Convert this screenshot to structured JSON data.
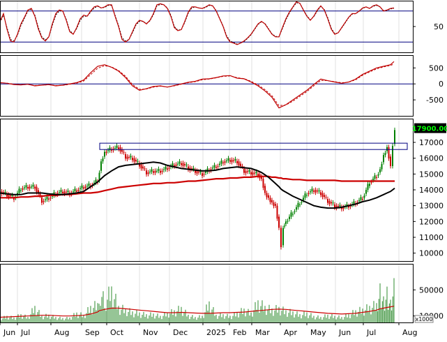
{
  "chart_data": [
    {
      "type": "line",
      "name": "stochastic-panel",
      "ylim": [
        0,
        100
      ],
      "reference_lines": [
        80,
        20
      ],
      "yticks": [
        {
          "v": 50,
          "label": "50"
        }
      ],
      "x": [
        0,
        5,
        10,
        15,
        20,
        25,
        30,
        35,
        40,
        45,
        50,
        55,
        60,
        65,
        70,
        75,
        80,
        85,
        90,
        95,
        100,
        105,
        110,
        115,
        120,
        125,
        130,
        135,
        140,
        145,
        150,
        155,
        160,
        165,
        170,
        175,
        180,
        185,
        190,
        195,
        200,
        205,
        210,
        215,
        220,
        225,
        230,
        235,
        240,
        245,
        250,
        255,
        260,
        265,
        270,
        275,
        280,
        285,
        290,
        295,
        300,
        305,
        310,
        315,
        320,
        325,
        330,
        335,
        340,
        345,
        350,
        355,
        360,
        365,
        370,
        375,
        380,
        385,
        390,
        395,
        400,
        405,
        410,
        415,
        420,
        425,
        430,
        435,
        440,
        445,
        450,
        455,
        460,
        465,
        470,
        475,
        480,
        485,
        490,
        495,
        500,
        505,
        510,
        515,
        520,
        525,
        530,
        535,
        540,
        545,
        550,
        555,
        560,
        565
      ],
      "series": [
        {
          "values": [
            60,
            75,
            45,
            22,
            20,
            35,
            55,
            68,
            82,
            85,
            70,
            45,
            28,
            22,
            30,
            55,
            75,
            82,
            80,
            62,
            40,
            35,
            48,
            65,
            72,
            70,
            80,
            88,
            90,
            86,
            88,
            92,
            92,
            70,
            50,
            25,
            20,
            25,
            40,
            55,
            62,
            60,
            55,
            62,
            75,
            92,
            94,
            92,
            85,
            70,
            48,
            42,
            44,
            60,
            78,
            88,
            88,
            86,
            85,
            88,
            92,
            90,
            80,
            65,
            50,
            30,
            20,
            18,
            15,
            18,
            22,
            28,
            35,
            45,
            55,
            60,
            55,
            45,
            35,
            30,
            30,
            48,
            65,
            78,
            88,
            98,
            95,
            82,
            70,
            62,
            70,
            82,
            90,
            82,
            65,
            45,
            35,
            38,
            48,
            58,
            68,
            75,
            75,
            80,
            86,
            88,
            85,
            90,
            92,
            88,
            80,
            82,
            85,
            86
          ]
        },
        {
          "values": [
            58,
            72,
            48,
            25,
            22,
            33,
            52,
            66,
            80,
            84,
            72,
            48,
            30,
            24,
            30,
            52,
            72,
            80,
            80,
            64,
            42,
            36,
            46,
            62,
            70,
            70,
            78,
            86,
            89,
            86,
            87,
            91,
            91,
            72,
            52,
            28,
            22,
            25,
            38,
            53,
            60,
            60,
            56,
            61,
            73,
            90,
            93,
            92,
            86,
            72,
            50,
            43,
            44,
            58,
            76,
            86,
            88,
            86,
            85,
            87,
            91,
            90,
            81,
            66,
            51,
            32,
            22,
            19,
            16,
            18,
            21,
            27,
            34,
            44,
            54,
            59,
            56,
            46,
            36,
            31,
            30,
            46,
            63,
            76,
            87,
            96,
            95,
            83,
            71,
            63,
            69,
            80,
            89,
            83,
            67,
            47,
            36,
            38,
            47,
            57,
            67,
            74,
            75,
            79,
            85,
            88,
            85,
            89,
            91,
            88,
            81,
            81,
            84,
            85
          ]
        }
      ]
    },
    {
      "type": "line",
      "name": "macd-panel",
      "ylim": [
        -1000,
        900
      ],
      "reference_lines": [
        0
      ],
      "yticks": [
        {
          "v": 500,
          "label": "500"
        },
        {
          "v": 0,
          "label": "0"
        },
        {
          "v": -500,
          "label": "-500"
        }
      ],
      "x": [
        0,
        10,
        20,
        30,
        40,
        50,
        60,
        70,
        80,
        90,
        100,
        110,
        120,
        130,
        140,
        150,
        160,
        170,
        180,
        190,
        200,
        210,
        220,
        230,
        240,
        250,
        260,
        270,
        280,
        290,
        300,
        310,
        320,
        330,
        340,
        350,
        360,
        370,
        380,
        390,
        400,
        410,
        420,
        430,
        440,
        450,
        460,
        470,
        480,
        490,
        500,
        510,
        520,
        530,
        540,
        550,
        560,
        565
      ],
      "series": [
        {
          "values": [
            40,
            20,
            -20,
            -30,
            -10,
            -60,
            -40,
            -20,
            -60,
            -40,
            0,
            40,
            120,
            350,
            550,
            600,
            520,
            400,
            200,
            -60,
            -200,
            -150,
            -80,
            -60,
            -100,
            -50,
            0,
            50,
            80,
            150,
            160,
            200,
            250,
            260,
            180,
            160,
            60,
            -60,
            -220,
            -420,
            -750,
            -650,
            -500,
            -350,
            -200,
            -20,
            150,
            100,
            60,
            20,
            60,
            150,
            300,
            400,
            500,
            550,
            600,
            700
          ]
        },
        {
          "values": [
            35,
            25,
            -10,
            -25,
            -15,
            -50,
            -40,
            -25,
            -50,
            -45,
            -10,
            25,
            90,
            290,
            490,
            570,
            530,
            420,
            240,
            -20,
            -170,
            -160,
            -100,
            -70,
            -95,
            -60,
            -10,
            40,
            70,
            130,
            150,
            190,
            235,
            250,
            195,
            165,
            80,
            -30,
            -180,
            -370,
            -680,
            -660,
            -540,
            -390,
            -240,
            -60,
            110,
            100,
            70,
            35,
            55,
            130,
            270,
            375,
            470,
            530,
            580,
            620
          ]
        }
      ]
    },
    {
      "type": "line",
      "name": "price-panel",
      "ylim": [
        9500,
        18500
      ],
      "current_price_label": "17900.00",
      "yticks": [
        {
          "v": 17000,
          "label": "17000"
        },
        {
          "v": 16000,
          "label": "16000"
        },
        {
          "v": 15000,
          "label": "15000"
        },
        {
          "v": 14000,
          "label": "14000"
        },
        {
          "v": 13000,
          "label": "13000"
        },
        {
          "v": 12000,
          "label": "12000"
        },
        {
          "v": 11000,
          "label": "11000"
        },
        {
          "v": 10000,
          "label": "10000"
        }
      ],
      "resistance_box": {
        "x0": 143,
        "x1": 584,
        "y_low": 16550,
        "y_high": 16950
      },
      "x": [
        0,
        10,
        20,
        30,
        40,
        50,
        60,
        70,
        80,
        90,
        100,
        110,
        120,
        130,
        140,
        145,
        150,
        160,
        170,
        180,
        190,
        200,
        210,
        220,
        230,
        240,
        250,
        260,
        270,
        280,
        290,
        300,
        310,
        320,
        330,
        340,
        350,
        360,
        370,
        375,
        380,
        385,
        390,
        395,
        400,
        403,
        406,
        410,
        420,
        430,
        440,
        450,
        460,
        470,
        480,
        490,
        500,
        510,
        520,
        530,
        540,
        545,
        550,
        555,
        560,
        563,
        566
      ],
      "series": [
        {
          "values": [
            13900,
            13700,
            13500,
            14100,
            14200,
            14200,
            13300,
            13500,
            13800,
            13900,
            13800,
            14000,
            14200,
            14300,
            14600,
            15800,
            16400,
            16600,
            16700,
            16100,
            16000,
            15600,
            15100,
            15200,
            15200,
            15400,
            15600,
            15700,
            15400,
            15200,
            15000,
            15300,
            15500,
            15800,
            15900,
            15800,
            15200,
            15100,
            15000,
            14700,
            13800,
            13500,
            13200,
            13000,
            11600,
            10500,
            11700,
            12000,
            12600,
            13200,
            13800,
            14000,
            13800,
            13300,
            13000,
            12900,
            13000,
            13200,
            13500,
            14500,
            14900,
            15300,
            16200,
            16700,
            15500,
            16900,
            17900
          ]
        },
        {
          "values": [
            13800,
            13750,
            13700,
            13700,
            13800,
            13800,
            13800,
            13750,
            13700,
            13700,
            13750,
            13800,
            13900,
            14200,
            14500,
            14700,
            14900,
            15200,
            15450,
            15550,
            15600,
            15650,
            15700,
            15750,
            15700,
            15550,
            15450,
            15350,
            15300,
            15250,
            15200,
            15200,
            15250,
            15350,
            15400,
            15450,
            15400,
            15350,
            15200,
            15100,
            14950,
            14800,
            14600,
            14400,
            14200,
            14050,
            13950,
            13850,
            13600,
            13400,
            13200,
            13000,
            12900,
            12850,
            12850,
            12900,
            13000,
            13100,
            13250,
            13350,
            13500,
            13600,
            13700,
            13800,
            13900,
            14000,
            14100
          ]
        },
        {
          "values": [
            13500,
            13500,
            13500,
            13550,
            13550,
            13600,
            13600,
            13650,
            13650,
            13700,
            13700,
            13750,
            13800,
            13800,
            13850,
            13900,
            13950,
            14050,
            14150,
            14200,
            14250,
            14300,
            14350,
            14400,
            14400,
            14450,
            14450,
            14500,
            14550,
            14550,
            14600,
            14650,
            14700,
            14700,
            14750,
            14750,
            14800,
            14800,
            14850,
            14850,
            14850,
            14850,
            14800,
            14800,
            14750,
            14750,
            14700,
            14700,
            14650,
            14650,
            14600,
            14600,
            14600,
            14600,
            14600,
            14550,
            14550,
            14550,
            14550,
            14550,
            14550,
            14550,
            14550,
            14550,
            14550,
            14550,
            14550
          ]
        }
      ]
    },
    {
      "type": "bar",
      "name": "volume-panel",
      "ylim": [
        0,
        90000
      ],
      "unit_label": "x1000",
      "yticks": [
        {
          "v": 50000,
          "label": "50000"
        },
        {
          "v": 10000,
          "label": "10000"
        }
      ],
      "x_axis_labels": [
        {
          "x": 5,
          "label": "Jun"
        },
        {
          "x": 30,
          "label": "Jul"
        },
        {
          "x": 78,
          "label": "Aug"
        },
        {
          "x": 122,
          "label": "Sep"
        },
        {
          "x": 158,
          "label": "Oct"
        },
        {
          "x": 205,
          "label": "Nov"
        },
        {
          "x": 248,
          "label": "Dec"
        },
        {
          "x": 296,
          "label": "2025"
        },
        {
          "x": 334,
          "label": "Feb"
        },
        {
          "x": 366,
          "label": "Mar"
        },
        {
          "x": 407,
          "label": "Apr"
        },
        {
          "x": 445,
          "label": "May"
        },
        {
          "x": 486,
          "label": "Jun"
        },
        {
          "x": 526,
          "label": "Jul"
        },
        {
          "x": 577,
          "label": "Aug"
        }
      ],
      "x": [
        0,
        10,
        20,
        30,
        40,
        50,
        60,
        70,
        80,
        90,
        100,
        110,
        120,
        130,
        140,
        142,
        150,
        160,
        170,
        180,
        190,
        200,
        210,
        220,
        230,
        240,
        250,
        260,
        270,
        280,
        290,
        300,
        310,
        320,
        330,
        340,
        350,
        360,
        370,
        380,
        390,
        400,
        410,
        420,
        430,
        440,
        450,
        460,
        470,
        480,
        490,
        500,
        510,
        520,
        530,
        540,
        545,
        550,
        555,
        560,
        565
      ],
      "series": [
        {
          "values": [
            7000,
            12000,
            9000,
            15000,
            10000,
            30000,
            12000,
            14000,
            10000,
            8000,
            9000,
            18000,
            14000,
            30000,
            35000,
            72000,
            40000,
            65000,
            30000,
            25000,
            20000,
            18000,
            15000,
            16000,
            12000,
            18000,
            22000,
            28000,
            14000,
            10000,
            12000,
            38000,
            14000,
            15000,
            12000,
            18000,
            25000,
            18000,
            40000,
            30000,
            25000,
            28000,
            22000,
            20000,
            15000,
            18000,
            12000,
            10000,
            14000,
            12000,
            10000,
            15000,
            22000,
            25000,
            30000,
            35000,
            60000,
            40000,
            55000,
            35000,
            68000
          ]
        },
        {
          "values": [
            8000,
            8500,
            9000,
            9500,
            10000,
            10500,
            11000,
            11000,
            10500,
            10000,
            10000,
            10500,
            11000,
            13000,
            16000,
            18000,
            20000,
            22000,
            22000,
            21000,
            20000,
            19000,
            18000,
            17000,
            16000,
            15000,
            15000,
            15500,
            15000,
            14500,
            14000,
            14000,
            14500,
            15000,
            15000,
            15500,
            16000,
            17000,
            18000,
            19000,
            20000,
            20500,
            20000,
            19000,
            18000,
            17000,
            16000,
            15000,
            14000,
            13500,
            13000,
            13500,
            14000,
            15500,
            17000,
            19000,
            21000,
            22000,
            23000,
            24000,
            25000
          ]
        }
      ]
    }
  ]
}
